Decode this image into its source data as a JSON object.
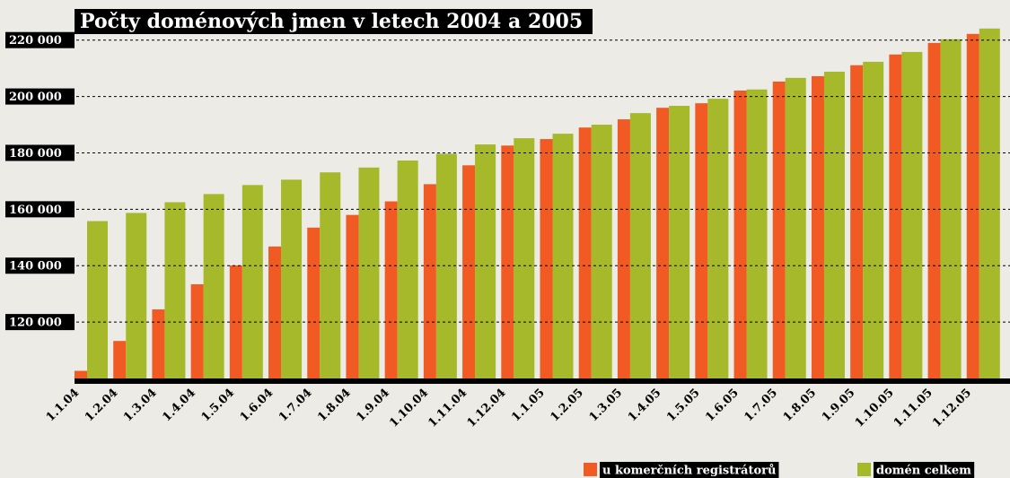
{
  "chart_data": {
    "type": "bar",
    "title": "Počty doménových jmen v letech 2004 a 2005",
    "categories": [
      "1.1.04",
      "1.2.04",
      "1.3.04",
      "1.4.04",
      "1.5.04",
      "1.6.04",
      "1.7.04",
      "1.8.04",
      "1.9.04",
      "1.10.04",
      "1.11.04",
      "1.12.04",
      "1.1.05",
      "1.2.05",
      "1.3.05",
      "1.4.05",
      "1.5.05",
      "1.6.05",
      "1.7.05",
      "1.8.05",
      "1.9.05",
      "1.10.05",
      "1.11.05",
      "1.12.05"
    ],
    "series": [
      {
        "name": "u komerčních registrátorů",
        "color": "#f15a22",
        "values": [
          102700,
          113300,
          124500,
          133400,
          140100,
          146800,
          153500,
          158000,
          162800,
          168900,
          175600,
          182600,
          184900,
          189000,
          191900,
          196000,
          197600,
          202100,
          205300,
          207200,
          211100,
          214900,
          219000,
          222200
        ]
      },
      {
        "name": "domén celkem",
        "color": "#a5b92a",
        "values": [
          155800,
          158700,
          162500,
          165400,
          168600,
          170500,
          173100,
          174800,
          177300,
          179700,
          183000,
          185200,
          186800,
          190000,
          194100,
          196700,
          199200,
          202500,
          206600,
          208800,
          212300,
          215800,
          220300,
          224100
        ]
      }
    ],
    "ylim": [
      100000,
      225000
    ],
    "yticks": [
      {
        "value": 120000,
        "label": "120 000"
      },
      {
        "value": 140000,
        "label": "140 000"
      },
      {
        "value": 160000,
        "label": "160 000"
      },
      {
        "value": 180000,
        "label": "180 000"
      },
      {
        "value": 200000,
        "label": "200 000"
      },
      {
        "value": 220000,
        "label": "220 000"
      }
    ],
    "grid": true
  }
}
